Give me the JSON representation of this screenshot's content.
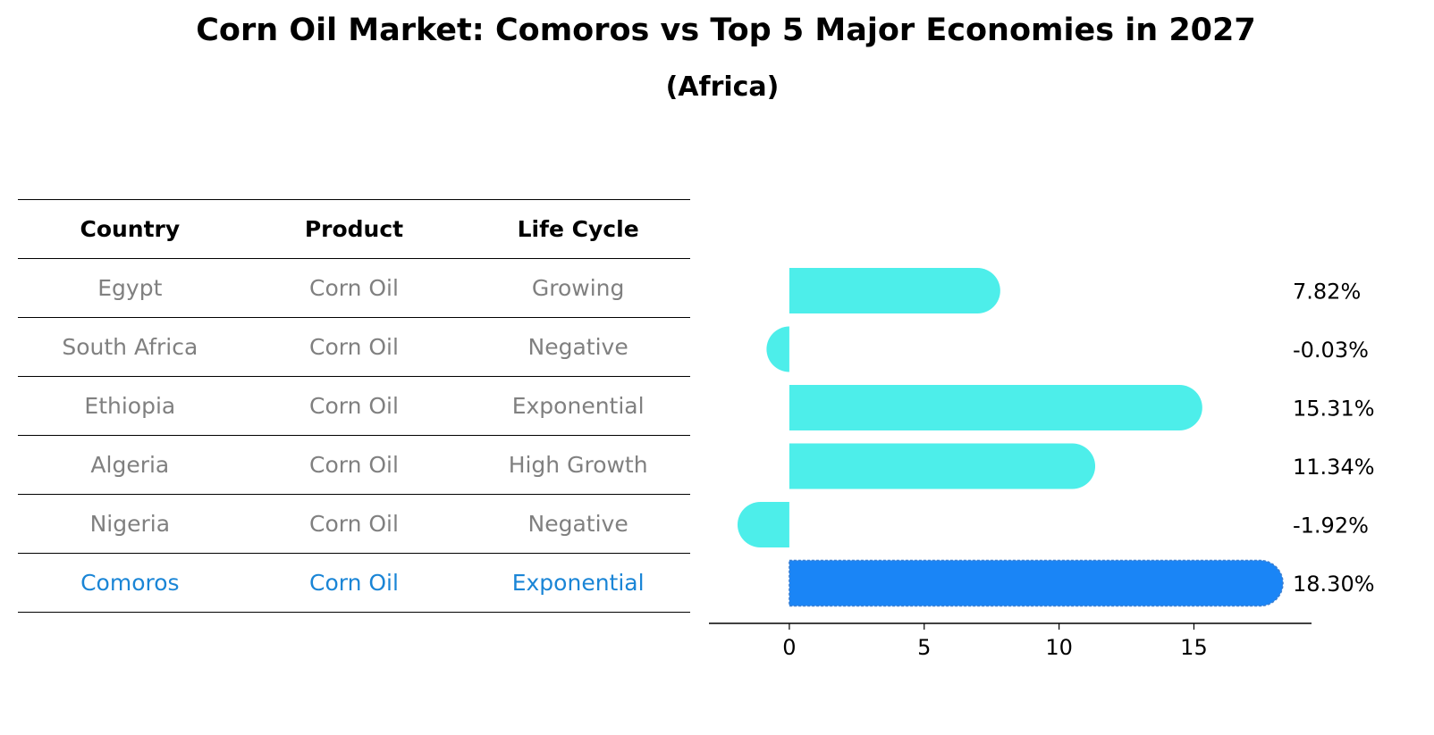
{
  "title": "Corn Oil Market: Comoros vs Top 5 Major Economies in 2027",
  "subtitle": "(Africa)",
  "table": {
    "headers": [
      "Country",
      "Product",
      "Life Cycle"
    ],
    "rows": [
      {
        "country": "Egypt",
        "product": "Corn Oil",
        "life_cycle": "Growing"
      },
      {
        "country": "South Africa",
        "product": "Corn Oil",
        "life_cycle": "Negative"
      },
      {
        "country": "Ethiopia",
        "product": "Corn Oil",
        "life_cycle": "Exponential"
      },
      {
        "country": "Algeria",
        "product": "Corn Oil",
        "life_cycle": "High Growth"
      },
      {
        "country": "Nigeria",
        "product": "Corn Oil",
        "life_cycle": "Negative"
      },
      {
        "country": "Comoros",
        "product": "Corn Oil",
        "life_cycle": "Exponential"
      }
    ],
    "highlight_color": "#1a85d6",
    "text_color": "#808080"
  },
  "chart_data": {
    "type": "bar",
    "orientation": "horizontal",
    "categories": [
      "Egypt",
      "South Africa",
      "Ethiopia",
      "Algeria",
      "Nigeria",
      "Comoros"
    ],
    "values": [
      7.82,
      -0.03,
      15.31,
      11.34,
      -1.92,
      18.3
    ],
    "value_labels": [
      "7.82%",
      "-0.03%",
      "15.31%",
      "11.34%",
      "-1.92%",
      "18.30%"
    ],
    "highlight_category": "Comoros",
    "bar_color": "#4deeea",
    "highlight_color": "#1a85f6",
    "xlim": [
      -2.98,
      19.36
    ],
    "xticks": [
      0,
      5,
      10,
      15
    ],
    "xticklabels": [
      "0",
      "5",
      "10",
      "15"
    ],
    "grid": false
  }
}
